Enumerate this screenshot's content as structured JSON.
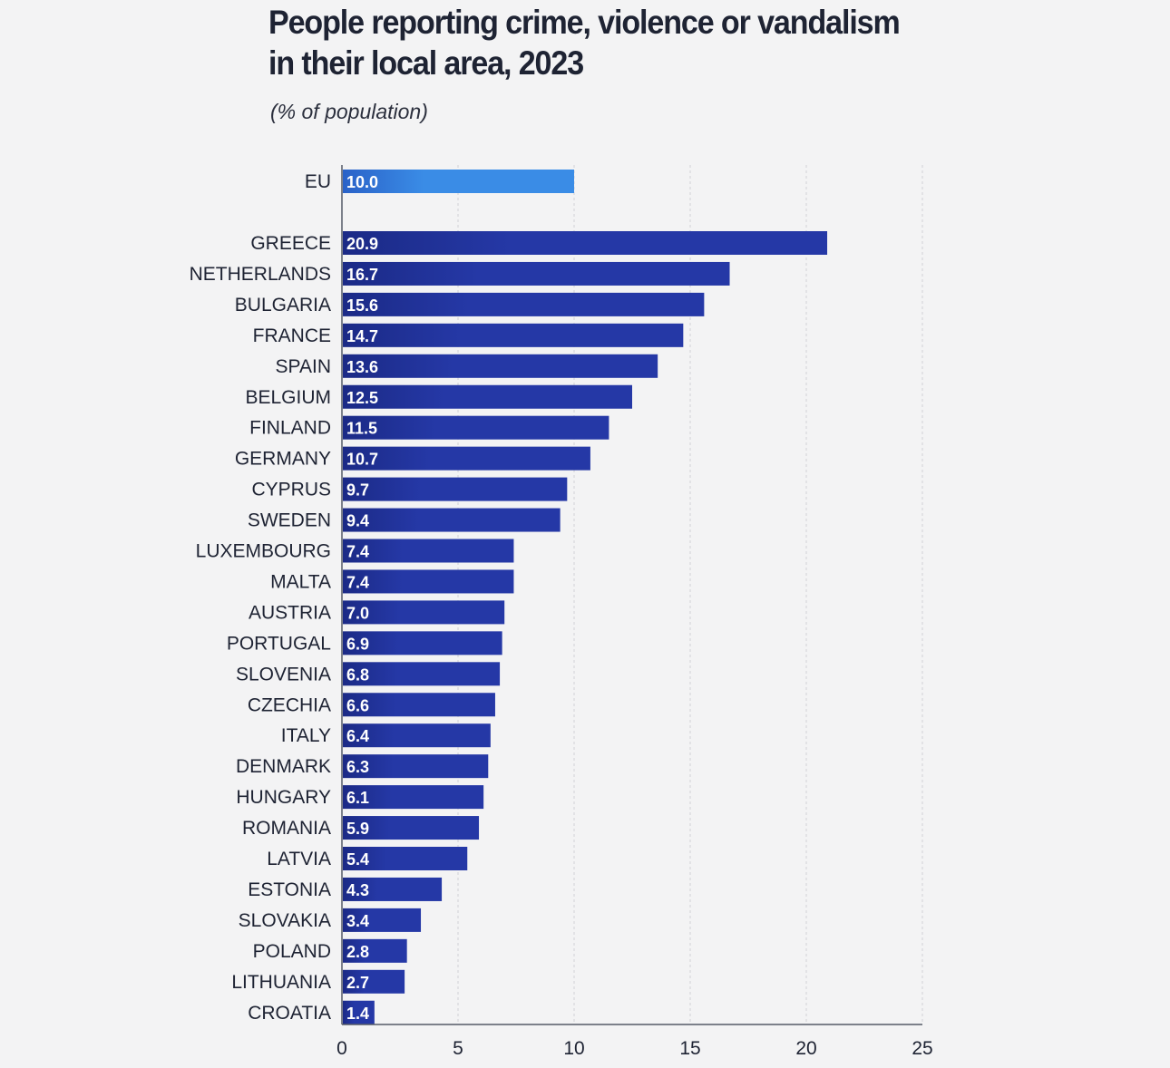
{
  "chart_data": {
    "type": "bar",
    "orientation": "horizontal",
    "title": [
      "People reporting crime, violence or vandalism",
      "in their local area, 2023"
    ],
    "subtitle": "(% of population)",
    "categories": [
      "EU",
      "GREECE",
      "NETHERLANDS",
      "BULGARIA",
      "FRANCE",
      "SPAIN",
      "BELGIUM",
      "FINLAND",
      "GERMANY",
      "CYPRUS",
      "SWEDEN",
      "LUXEMBOURG",
      "MALTA",
      "AUSTRIA",
      "PORTUGAL",
      "SLOVENIA",
      "CZECHIA",
      "ITALY",
      "DENMARK",
      "HUNGARY",
      "ROMANIA",
      "LATVIA",
      "ESTONIA",
      "SLOVAKIA",
      "POLAND",
      "LITHUANIA",
      "CROATIA"
    ],
    "values": [
      10.0,
      20.9,
      16.7,
      15.6,
      14.7,
      13.6,
      12.5,
      11.5,
      10.7,
      9.7,
      9.4,
      7.4,
      7.4,
      7.0,
      6.9,
      6.8,
      6.6,
      6.4,
      6.3,
      6.1,
      5.9,
      5.4,
      4.3,
      3.4,
      2.8,
      2.7,
      1.4
    ],
    "value_labels": [
      "10.0",
      "20.9",
      "16.7",
      "15.6",
      "14.7",
      "13.6",
      "12.5",
      "11.5",
      "10.7",
      "9.7",
      "9.4",
      "7.4",
      "7.4",
      "7.0",
      "6.9",
      "6.8",
      "6.6",
      "6.4",
      "6.3",
      "6.1",
      "5.9",
      "5.4",
      "4.3",
      "3.4",
      "2.8",
      "2.7",
      "1.4"
    ],
    "highlight_category": "EU",
    "xlim": [
      0,
      25
    ],
    "xticks": [
      0,
      5,
      10,
      15,
      20,
      25
    ],
    "xlabel": "",
    "ylabel": "",
    "grid": "vertical",
    "colors": {
      "bar": "#2538a6",
      "bar_dark": "#1b2a86",
      "highlight": "#3a8ce6",
      "highlight_dark": "#2a62c8",
      "grid": "#d0d0d6",
      "axis": "#555a66"
    }
  }
}
